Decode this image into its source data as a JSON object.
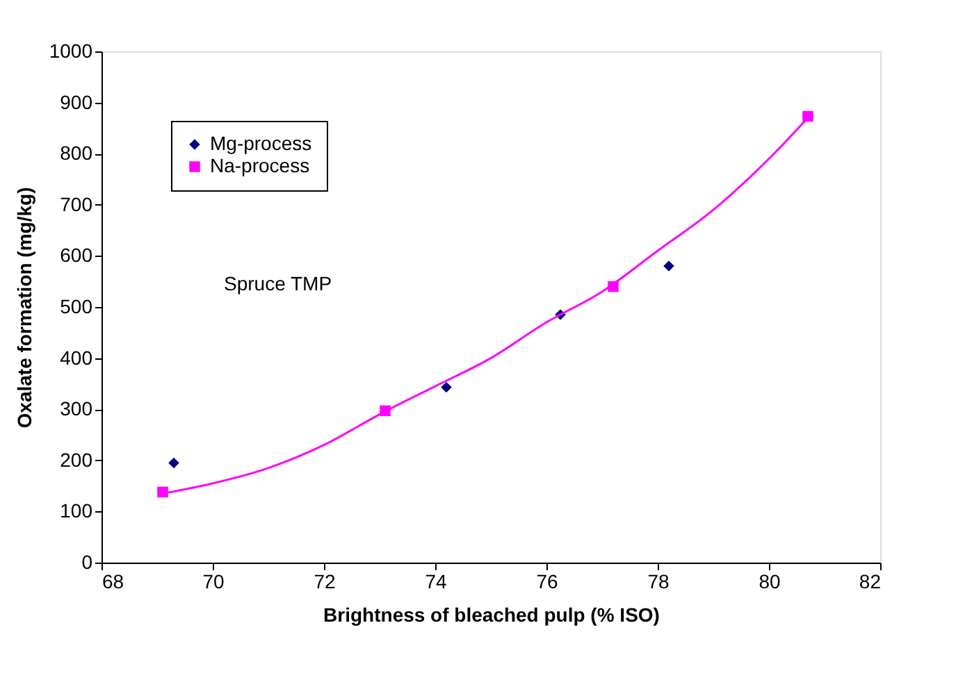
{
  "chart_data": {
    "type": "scatter",
    "xlabel": "Brightness of bleached pulp (% ISO)",
    "ylabel": "Oxalate formation (mg/kg)",
    "xlim": [
      68,
      82
    ],
    "xticks": [
      68,
      70,
      72,
      74,
      76,
      78,
      80,
      82
    ],
    "ylim": [
      0,
      1000
    ],
    "yticks": [
      0,
      100,
      200,
      300,
      400,
      500,
      600,
      700,
      800,
      900,
      1000
    ],
    "grid": false,
    "legend": "top left",
    "annotations": [
      "Spruce TMP"
    ],
    "series": [
      {
        "name": "Mg-process",
        "color": "#000080",
        "marker": "diamond",
        "x": [
          69.3,
          74.2,
          76.25,
          78.2
        ],
        "values": [
          195,
          343,
          485,
          580
        ]
      },
      {
        "name": "Na-process",
        "color": "#ff00ff",
        "marker": "square",
        "x": [
          69.1,
          73.1,
          77.2,
          80.7
        ],
        "values": [
          138,
          297,
          540,
          873
        ]
      },
      {
        "type": "line",
        "color": "#ff00ff",
        "marker": "none",
        "x": [
          69.1,
          70,
          71,
          72,
          73,
          74,
          75,
          76,
          77,
          78,
          79,
          80,
          80.7
        ],
        "values": [
          135,
          155,
          185,
          230,
          290,
          345,
          400,
          470,
          530,
          610,
          690,
          790,
          870
        ]
      }
    ]
  }
}
